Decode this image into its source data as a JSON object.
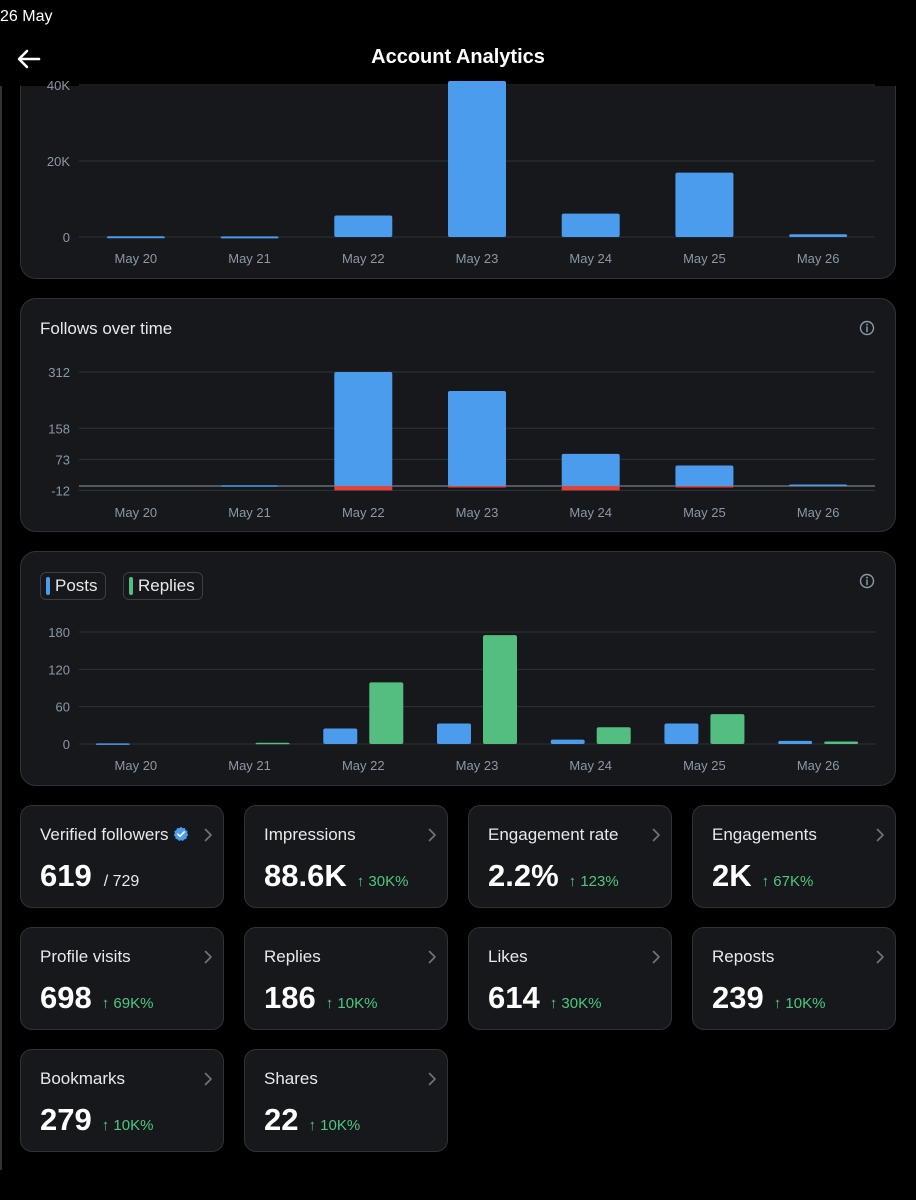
{
  "status_bar": {
    "time": "26 May"
  },
  "header": {
    "title": "Account Analytics"
  },
  "colors": {
    "accent": "#4c9cee",
    "replies": "#54be81",
    "negative": "#e0433c",
    "positive_text": "#4fc77f"
  },
  "chart_data": [
    {
      "type": "bar",
      "categories": [
        "May 20",
        "May 21",
        "May 22",
        "May 23",
        "May 24",
        "May 25",
        "May 26"
      ],
      "values": [
        200,
        150,
        5500,
        40000,
        6000,
        16500,
        700
      ],
      "y_ticks": [
        "40K",
        "20K",
        "0"
      ],
      "ylim": [
        0,
        40000
      ]
    },
    {
      "type": "bar",
      "title": "Follows over time",
      "categories": [
        "May 20",
        "May 21",
        "May 22",
        "May 23",
        "May 24",
        "May 25",
        "May 26"
      ],
      "values": [
        0,
        2,
        312,
        260,
        88,
        56,
        4
      ],
      "negative_values": [
        0,
        0,
        -12,
        -3,
        -12,
        -3,
        0
      ],
      "y_ticks": [
        "312",
        "158",
        "73",
        "-12"
      ],
      "ylim": [
        -12,
        312
      ]
    },
    {
      "type": "bar",
      "categories": [
        "May 20",
        "May 21",
        "May 22",
        "May 23",
        "May 24",
        "May 25",
        "May 26"
      ],
      "series": [
        {
          "name": "Posts",
          "values": [
            1,
            0,
            25,
            33,
            7,
            33,
            5
          ]
        },
        {
          "name": "Replies",
          "values": [
            0,
            2,
            99,
            175,
            27,
            48,
            4
          ]
        }
      ],
      "y_ticks": [
        "180",
        "120",
        "60",
        "0"
      ],
      "ylim": [
        0,
        180
      ],
      "legend": "top-left"
    }
  ],
  "legend": {
    "posts": "Posts",
    "replies": "Replies"
  },
  "stats": [
    {
      "label": "Verified followers",
      "value": "619",
      "total": "/ 729",
      "change": "",
      "verified": true
    },
    {
      "label": "Impressions",
      "value": "88.6K",
      "total": "",
      "change": "↑ 30K%"
    },
    {
      "label": "Engagement rate",
      "value": "2.2%",
      "total": "",
      "change": "↑ 123%"
    },
    {
      "label": "Engagements",
      "value": "2K",
      "total": "",
      "change": "↑ 67K%"
    },
    {
      "label": "Profile visits",
      "value": "698",
      "total": "",
      "change": "↑ 69K%"
    },
    {
      "label": "Replies",
      "value": "186",
      "total": "",
      "change": "↑ 10K%"
    },
    {
      "label": "Likes",
      "value": "614",
      "total": "",
      "change": "↑ 30K%"
    },
    {
      "label": "Reposts",
      "value": "239",
      "total": "",
      "change": "↑ 10K%"
    },
    {
      "label": "Bookmarks",
      "value": "279",
      "total": "",
      "change": "↑ 10K%"
    },
    {
      "label": "Shares",
      "value": "22",
      "total": "",
      "change": "↑ 10K%"
    }
  ]
}
